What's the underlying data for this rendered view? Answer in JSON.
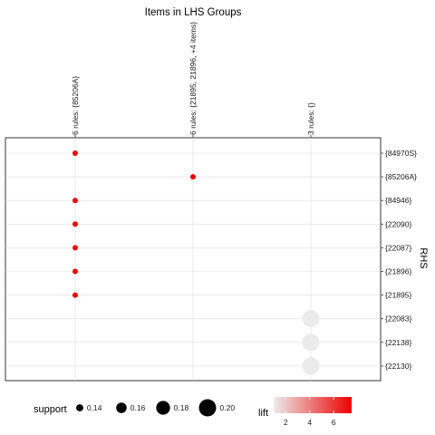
{
  "chart_data": {
    "type": "scatter",
    "title": "Items in LHS Groups",
    "xlabel": "",
    "ylabel": "RHS",
    "x_categories": [
      "6 rules: {85206A}",
      "6 rules: {21895, 21896, +4 items}",
      "3 rules: {}"
    ],
    "y_categories": [
      "{84970S}",
      "{85206A}",
      "{84946}",
      "{22090}",
      "{22087}",
      "{21896}",
      "{21895}",
      "{22083}",
      "{22138}",
      "{22130}"
    ],
    "points": [
      {
        "x": "6 rules: {85206A}",
        "y": "{84970S}",
        "support": 0.13,
        "lift": 7.5
      },
      {
        "x": "6 rules: {21895, 21896, +4 items}",
        "y": "{85206A}",
        "support": 0.13,
        "lift": 7.5
      },
      {
        "x": "6 rules: {85206A}",
        "y": "{84946}",
        "support": 0.13,
        "lift": 7.5
      },
      {
        "x": "6 rules: {85206A}",
        "y": "{22090}",
        "support": 0.13,
        "lift": 7.5
      },
      {
        "x": "6 rules: {85206A}",
        "y": "{22087}",
        "support": 0.13,
        "lift": 7.5
      },
      {
        "x": "6 rules: {85206A}",
        "y": "{21896}",
        "support": 0.13,
        "lift": 7.5
      },
      {
        "x": "6 rules: {85206A}",
        "y": "{21895}",
        "support": 0.13,
        "lift": 7.5
      },
      {
        "x": "3 rules: {}",
        "y": "{22083}",
        "support": 0.2,
        "lift": 1
      },
      {
        "x": "3 rules: {}",
        "y": "{22138}",
        "support": 0.2,
        "lift": 1
      },
      {
        "x": "3 rules: {}",
        "y": "{22130}",
        "support": 0.2,
        "lift": 1
      }
    ],
    "legend": {
      "size_title": "support",
      "size_breaks": [
        0.14,
        0.16,
        0.18,
        0.2
      ],
      "size_labels": [
        "0.14",
        "0.16",
        "0.18",
        "0.20"
      ],
      "color_title": "lift",
      "color_breaks": [
        2,
        4,
        6
      ],
      "color_labels": [
        "2",
        "4",
        "6"
      ],
      "color_low": "#ebebeb",
      "color_high": "#ee0000",
      "lift_range": [
        1,
        7.5
      ],
      "support_range": [
        0.13,
        0.2
      ]
    },
    "grid": true,
    "legend_position": "bottom"
  }
}
